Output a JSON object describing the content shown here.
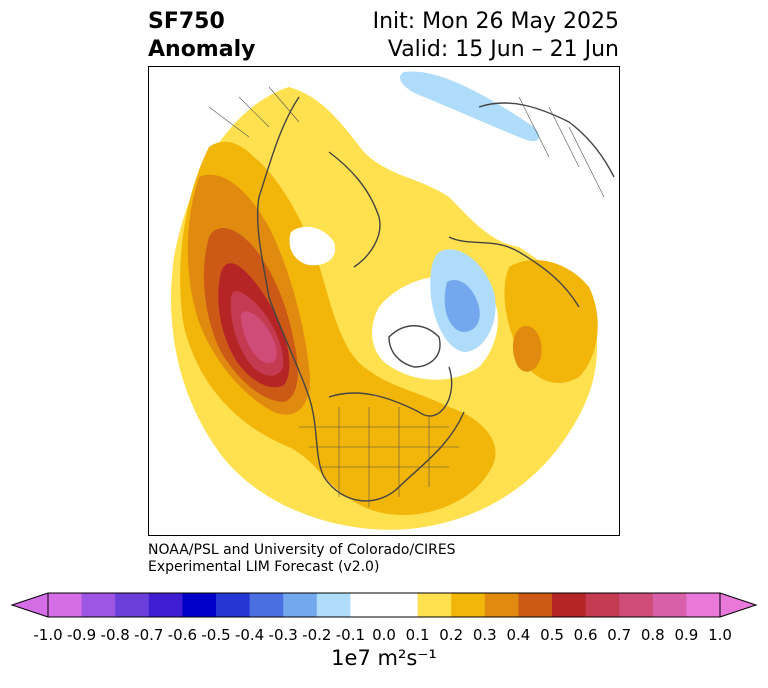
{
  "title": {
    "variable": "SF750",
    "type": "Anomaly",
    "init": "Init: Mon 26 May 2025",
    "valid": "Valid: 15 Jun – 21 Jun"
  },
  "credit": {
    "line1": "NOAA/PSL and University of Colorado/CIRES",
    "line2": "Experimental LIM Forecast (v2.0)"
  },
  "colorbar": {
    "extend": "both",
    "units": "1e7 m²s⁻¹",
    "min": -1.0,
    "max": 1.0,
    "step": 0.1,
    "tick_labels": [
      "-1.0",
      "-0.9",
      "-0.8",
      "-0.7",
      "-0.6",
      "-0.5",
      "-0.4",
      "-0.3",
      "-0.2",
      "-0.1",
      "0.0",
      "0.1",
      "0.2",
      "0.3",
      "0.4",
      "0.5",
      "0.6",
      "0.7",
      "0.8",
      "0.9",
      "1.0"
    ],
    "colors": [
      "#d56ee6",
      "#9e55e3",
      "#6b3fd9",
      "#3f1dd1",
      "#0000c8",
      "#2536d4",
      "#4b6fe0",
      "#73a8ee",
      "#aedcfa",
      "#ffffff",
      "#ffffff",
      "#ffe04e",
      "#f2b50a",
      "#e08b10",
      "#cc5a16",
      "#b52525",
      "#c43a50",
      "#cf4b78",
      "#d760a8",
      "#e878d9"
    ],
    "min_extend_color": "#d56ee6",
    "max_extend_color": "#e878d9"
  },
  "map": {
    "projection": "north-polar-stereographic",
    "features": "coastlines, country and state borders",
    "anomaly_regions": [
      {
        "region": "NE Pacific / west of North America",
        "value_range": [
          0.7,
          0.8
        ],
        "sign": "positive"
      },
      {
        "region": "North America broad ridge",
        "value_range": [
          0.1,
          0.3
        ],
        "sign": "positive"
      },
      {
        "region": "Scandinavia / Barents",
        "value_range": [
          -0.4,
          -0.1
        ],
        "sign": "negative"
      },
      {
        "region": "Siberia north coast",
        "value_range": [
          -0.2,
          -0.1
        ],
        "sign": "negative"
      },
      {
        "region": "Europe",
        "value_range": [
          0.1,
          0.4
        ],
        "sign": "positive"
      }
    ]
  }
}
